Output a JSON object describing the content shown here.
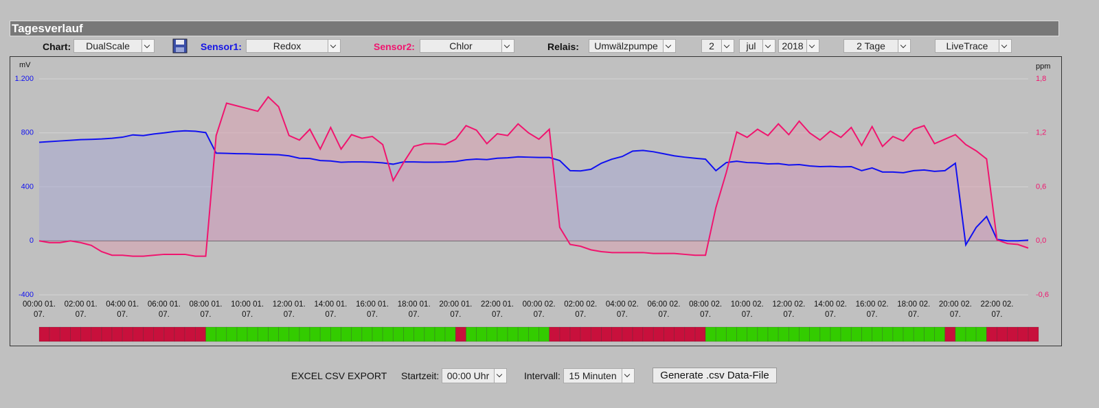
{
  "header": {
    "title": "Tagesverlauf"
  },
  "controls": {
    "chart_label": "Chart:",
    "chart_value": "DualScale",
    "sensor1_label": "Sensor1:",
    "sensor1_value": "Redox",
    "sensor2_label": "Sensor2:",
    "sensor2_value": "Chlor",
    "relais_label": "Relais:",
    "relais_value": "Umwälzpumpe",
    "day": "2",
    "month": "jul",
    "year": "2018",
    "range": "2 Tage",
    "mode": "LiveTrace"
  },
  "export": {
    "title": "EXCEL CSV EXPORT",
    "start_label": "Startzeit:",
    "start_value": "00:00 Uhr",
    "interval_label": "Intervall:",
    "interval_value": "15 Minuten",
    "button": "Generate .csv Data-File"
  },
  "chart_data": {
    "type": "line",
    "ylabel": "mV",
    "y2label": "ppm",
    "grid": true,
    "xlim": [
      0,
      47.5
    ],
    "ylim": [
      -400,
      1200
    ],
    "y2lim": [
      -0.6,
      1.8
    ],
    "yticks": [
      -400,
      0,
      400,
      800,
      {
        "value": 1200,
        "label": "1.200"
      }
    ],
    "y2ticks": [
      {
        "value": -0.6,
        "label": "-0,6"
      },
      {
        "value": 0,
        "label": "0,0"
      },
      {
        "value": 0.6,
        "label": "0,6"
      },
      {
        "value": 1.2,
        "label": "1,2"
      },
      {
        "value": 1.8,
        "label": "1,8"
      }
    ],
    "xticks": [
      {
        "value": 0,
        "label": "00:00 01.\n07."
      },
      {
        "value": 2,
        "label": "02:00 01.\n07."
      },
      {
        "value": 4,
        "label": "04:00 01.\n07."
      },
      {
        "value": 6,
        "label": "06:00 01.\n07."
      },
      {
        "value": 8,
        "label": "08:00 01.\n07."
      },
      {
        "value": 10,
        "label": "10:00 01.\n07."
      },
      {
        "value": 12,
        "label": "12:00 01.\n07."
      },
      {
        "value": 14,
        "label": "14:00 01.\n07."
      },
      {
        "value": 16,
        "label": "16:00 01.\n07."
      },
      {
        "value": 18,
        "label": "18:00 01.\n07."
      },
      {
        "value": 20,
        "label": "20:00 01.\n07."
      },
      {
        "value": 22,
        "label": "22:00 01.\n07."
      },
      {
        "value": 24,
        "label": "00:00 02.\n07."
      },
      {
        "value": 26,
        "label": "02:00 02.\n07."
      },
      {
        "value": 28,
        "label": "04:00 02.\n07."
      },
      {
        "value": 30,
        "label": "06:00 02.\n07."
      },
      {
        "value": 32,
        "label": "08:00 02.\n07."
      },
      {
        "value": 34,
        "label": "10:00 02.\n07."
      },
      {
        "value": 36,
        "label": "12:00 02.\n07."
      },
      {
        "value": 38,
        "label": "14:00 02.\n07."
      },
      {
        "value": 40,
        "label": "16:00 02.\n07."
      },
      {
        "value": 42,
        "label": "18:00 02.\n07."
      },
      {
        "value": 44,
        "label": "20:00 02.\n07."
      },
      {
        "value": 46,
        "label": "22:00 02.\n07."
      }
    ],
    "x": [
      0,
      0.5,
      1,
      1.5,
      2,
      2.5,
      3,
      3.5,
      4,
      4.5,
      5,
      5.5,
      6,
      6.5,
      7,
      7.5,
      8,
      8.5,
      9,
      9.5,
      10,
      10.5,
      11,
      11.5,
      12,
      12.5,
      13,
      13.5,
      14,
      14.5,
      15,
      15.5,
      16,
      16.5,
      17,
      17.5,
      18,
      18.5,
      19,
      19.5,
      20,
      20.5,
      21,
      21.5,
      22,
      22.5,
      23,
      23.5,
      24,
      24.5,
      25,
      25.5,
      26,
      26.5,
      27,
      27.5,
      28,
      28.5,
      29,
      29.5,
      30,
      30.5,
      31,
      31.5,
      32,
      32.5,
      33,
      33.5,
      34,
      34.5,
      35,
      35.5,
      36,
      36.5,
      37,
      37.5,
      38,
      38.5,
      39,
      39.5,
      40,
      40.5,
      41,
      41.5,
      42,
      42.5,
      43,
      43.5,
      44,
      44.5,
      45,
      45.5,
      46,
      46.5,
      47,
      47.5
    ],
    "series": [
      {
        "color": "#1010f0",
        "fill": "#a8a8d0",
        "axis": "y",
        "values": [
          730,
          735,
          740,
          745,
          750,
          752,
          755,
          760,
          768,
          785,
          780,
          792,
          800,
          810,
          815,
          812,
          802,
          650,
          648,
          646,
          645,
          642,
          640,
          638,
          630,
          612,
          610,
          595,
          592,
          582,
          585,
          585,
          583,
          578,
          568,
          585,
          585,
          583,
          583,
          584,
          588,
          600,
          606,
          602,
          612,
          615,
          622,
          620,
          618,
          618,
          595,
          520,
          518,
          530,
          575,
          605,
          625,
          665,
          670,
          660,
          645,
          630,
          620,
          612,
          605,
          520,
          580,
          590,
          580,
          578,
          570,
          572,
          562,
          565,
          555,
          550,
          552,
          548,
          550,
          520,
          540,
          510,
          510,
          505,
          520,
          525,
          515,
          520,
          575,
          -30,
          100,
          180,
          10,
          0,
          0,
          5
        ]
      },
      {
        "color": "#f0146e",
        "fill": "#d8a0b0",
        "axis": "y2",
        "values": [
          0,
          -0.02,
          -0.02,
          0,
          -0.02,
          -0.05,
          -0.12,
          -0.16,
          -0.16,
          -0.17,
          -0.17,
          -0.16,
          -0.15,
          -0.15,
          -0.15,
          -0.17,
          -0.17,
          1.17,
          1.53,
          1.5,
          1.47,
          1.44,
          1.6,
          1.49,
          1.17,
          1.12,
          1.24,
          1.02,
          1.26,
          1.02,
          1.18,
          1.14,
          1.16,
          1.07,
          0.67,
          0.87,
          1.05,
          1.08,
          1.08,
          1.07,
          1.13,
          1.28,
          1.23,
          1.08,
          1.19,
          1.17,
          1.3,
          1.2,
          1.13,
          1.24,
          0.15,
          -0.04,
          -0.06,
          -0.1,
          -0.12,
          -0.13,
          -0.13,
          -0.13,
          -0.13,
          -0.14,
          -0.14,
          -0.14,
          -0.15,
          -0.16,
          -0.16,
          0.37,
          0.76,
          1.21,
          1.15,
          1.24,
          1.17,
          1.3,
          1.18,
          1.33,
          1.2,
          1.12,
          1.22,
          1.15,
          1.26,
          1.06,
          1.27,
          1.05,
          1.16,
          1.11,
          1.24,
          1.28,
          1.08,
          1.13,
          1.18,
          1.07,
          1,
          0.91,
          0.01,
          -0.03,
          -0.04,
          -0.08
        ]
      }
    ],
    "relay_colors": [
      "#c8103c",
      "#33cc00"
    ],
    "relay_values": [
      0,
      0,
      0,
      0,
      0,
      0,
      0,
      0,
      0,
      0,
      0,
      0,
      0,
      0,
      0,
      0,
      1,
      1,
      1,
      1,
      1,
      1,
      1,
      1,
      1,
      1,
      1,
      1,
      1,
      1,
      1,
      1,
      1,
      1,
      1,
      1,
      1,
      1,
      1,
      1,
      0,
      1,
      1,
      1,
      1,
      1,
      1,
      1,
      1,
      0,
      0,
      0,
      0,
      0,
      0,
      0,
      0,
      0,
      0,
      0,
      0,
      0,
      0,
      0,
      1,
      1,
      1,
      1,
      1,
      1,
      1,
      1,
      1,
      1,
      1,
      1,
      1,
      1,
      1,
      1,
      1,
      1,
      1,
      1,
      1,
      1,
      1,
      0,
      1,
      1,
      1,
      0,
      0,
      0,
      0,
      0
    ]
  }
}
